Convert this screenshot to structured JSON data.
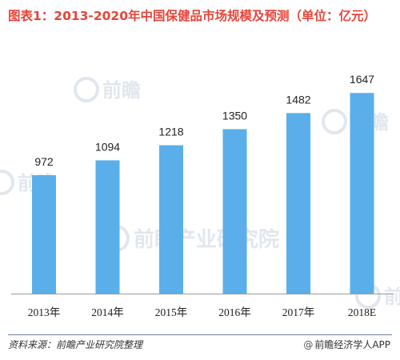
{
  "title": "图表1：2013-2020年中国保健品市场规模及预测（单位：亿元）",
  "watermark": {
    "brand": "前瞻",
    "institute": "前瞻产业研究院",
    "color": "#dde3ea"
  },
  "footer": {
    "source": "资料来源：前瞻产业研究院整理",
    "brand": "前瞻经济学人APP",
    "at_symbol": "@"
  },
  "colors": {
    "title": "#e8443a",
    "bar": "#5aafea",
    "axis": "#9a9a9a",
    "divider": "#6e7f94"
  },
  "chart_data": {
    "type": "bar",
    "title": "图表1：2013-2020年中国保健品市场规模及预测（单位：亿元）",
    "xlabel": "",
    "ylabel": "",
    "categories": [
      "2013年",
      "2014年",
      "2015年",
      "2016年",
      "2017年",
      "2018E"
    ],
    "values": [
      972,
      1094,
      1218,
      1350,
      1482,
      1647
    ],
    "ylim": [
      0,
      1800
    ],
    "grid": false,
    "legend": "none"
  }
}
